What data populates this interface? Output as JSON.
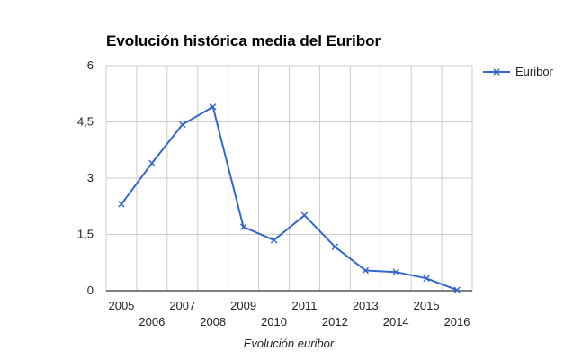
{
  "chart_data": {
    "type": "line",
    "title": "Evolución histórica media del Euribor",
    "xlabel": "Evolución euribor",
    "ylabel": "",
    "x": [
      "2005",
      "2006",
      "2007",
      "2008",
      "2009",
      "2010",
      "2011",
      "2012",
      "2013",
      "2014",
      "2015",
      "2016"
    ],
    "series": [
      {
        "name": "Euribor",
        "color": "#3366cc",
        "values": [
          2.31,
          3.4,
          4.43,
          4.9,
          1.7,
          1.35,
          2.01,
          1.17,
          0.54,
          0.5,
          0.33,
          0.02
        ]
      }
    ],
    "ylim": [
      0,
      6
    ],
    "yticks": [
      0,
      1.5,
      3,
      4.5,
      6
    ],
    "ytick_labels": [
      "0",
      "1,5",
      "3",
      "4,5",
      "6"
    ],
    "grid": true,
    "legend": "right"
  }
}
